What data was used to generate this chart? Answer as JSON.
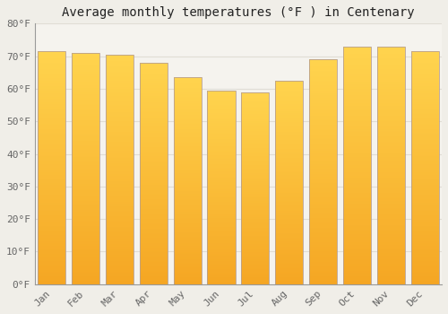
{
  "months": [
    "Jan",
    "Feb",
    "Mar",
    "Apr",
    "May",
    "Jun",
    "Jul",
    "Aug",
    "Sep",
    "Oct",
    "Nov",
    "Dec"
  ],
  "values": [
    71.5,
    71.0,
    70.5,
    68.0,
    63.5,
    59.5,
    59.0,
    62.5,
    69.0,
    73.0,
    73.0,
    71.5
  ],
  "bar_color_bottom": "#F5A623",
  "bar_color_top": "#FFD44E",
  "bar_border_color": "#B8A090",
  "title": "Average monthly temperatures (°F ) in Centenary",
  "ylim": [
    0,
    80
  ],
  "yticks": [
    0,
    10,
    20,
    30,
    40,
    50,
    60,
    70,
    80
  ],
  "ytick_labels": [
    "0°F",
    "10°F",
    "20°F",
    "30°F",
    "40°F",
    "50°F",
    "60°F",
    "70°F",
    "80°F"
  ],
  "background_color": "#F0EEE8",
  "plot_bg_color": "#F5F3EE",
  "grid_color": "#E0DDD5",
  "title_fontsize": 10,
  "tick_fontsize": 8,
  "bar_width": 0.82
}
